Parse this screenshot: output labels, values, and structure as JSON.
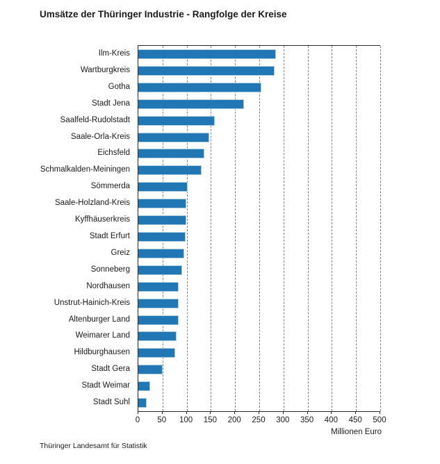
{
  "title": "Umsätze der Thüringer Industrie - Rangfolge der Kreise",
  "footer": "Thüringer Landesamt für Statistik",
  "chart_data": {
    "type": "bar",
    "orientation": "horizontal",
    "title": "Umsätze der Thüringer Industrie - Rangfolge der Kreise",
    "categories": [
      "Ilm-Kreis",
      "Wartburgkreis",
      "Gotha",
      "Stadt Jena",
      "Saalfeld-Rudolstadt",
      "Saale-Orla-Kreis",
      "Eichsfeld",
      "Schmalkalden-Meiningen",
      "Sömmerda",
      "Saale-Holzland-Kreis",
      "Kyffhäuserkreis",
      "Stadt Erfurt",
      "Greiz",
      "Sonneberg",
      "Nordhausen",
      "Unstrut-Hainich-Kreis",
      "Altenburger Land",
      "Weimarer Land",
      "Hildburghausen",
      "Stadt Gera",
      "Stadt Weimar",
      "Stadt Suhl"
    ],
    "values": [
      284,
      282,
      255,
      219,
      158,
      147,
      137,
      131,
      102,
      99,
      99,
      97,
      95,
      90,
      84,
      84,
      84,
      79,
      76,
      50,
      25,
      17
    ],
    "xlabel": "Millionen Euro",
    "ylabel": "",
    "xlim": [
      0,
      500
    ],
    "xticks": [
      0,
      50,
      100,
      150,
      200,
      250,
      300,
      350,
      400,
      450,
      500
    ],
    "grid": "vertical dashed gridlines at every 50",
    "legend": "none",
    "colors": {
      "bar": "#2077B4",
      "bar_edge": "#A8CCE0",
      "grid": "#7F7F7F",
      "axis": "#262626",
      "text": "#1A1A1A",
      "background": "#FFFFFF"
    }
  }
}
